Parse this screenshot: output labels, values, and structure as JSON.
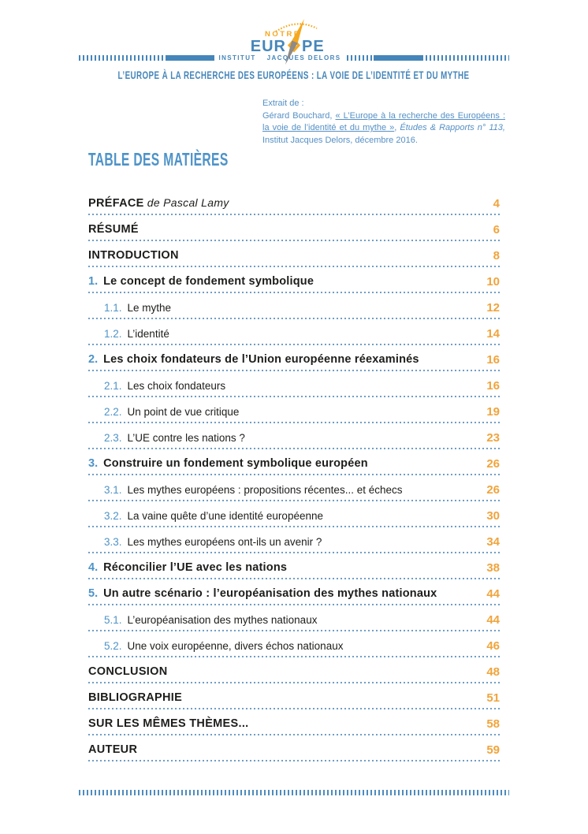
{
  "page": {
    "doc_title": "L’EUROPE À LA RECHERCHE DES EUROPÉENS : LA VOIE DE L’IDENTITÉ ET DU MYTHE"
  },
  "logo": {
    "brand_top": "NOTRE",
    "brand_left": "EUR",
    "brand_right": "PE",
    "institute_left": "INSTITUT",
    "institute_right": "JACQUES DELORS"
  },
  "citation": {
    "intro": "Extrait de :",
    "author": "Gérard Bouchard, ",
    "link_text": "« L’Europe à la recherche des Européens : la voie de l’identité et du mythe »",
    "after_link": ", ",
    "journal_italic": "Études & Rapports n° 113,",
    "tail": " Institut Jacques Delors, décembre 2016."
  },
  "toc": {
    "heading": "TABLE DES MATIÈRES",
    "entries": [
      {
        "label": "PRÉFACE",
        "italic": " de Pascal Lamy",
        "page": "4",
        "style": "top"
      },
      {
        "label": "RÉSUMÉ",
        "page": "6",
        "style": "top"
      },
      {
        "label": "INTRODUCTION",
        "page": "8",
        "style": "top"
      },
      {
        "num": "1.",
        "label": "Le concept de fondement symbolique",
        "page": "10",
        "style": "chapter"
      },
      {
        "num": "1.1.",
        "label": "Le mythe",
        "page": "12",
        "style": "sub"
      },
      {
        "num": "1.2.",
        "label": "L’identité",
        "page": "14",
        "style": "sub"
      },
      {
        "num": "2.",
        "label": "Les choix fondateurs de l’Union européenne réexaminés",
        "page": "16",
        "style": "chapter"
      },
      {
        "num": "2.1.",
        "label": "Les choix fondateurs",
        "page": "16",
        "style": "sub"
      },
      {
        "num": "2.2.",
        "label": "Un point de vue critique",
        "page": "19",
        "style": "sub"
      },
      {
        "num": "2.3.",
        "label": "L’UE contre les nations ?",
        "page": "23",
        "style": "sub"
      },
      {
        "num": "3.",
        "label": "Construire un fondement symbolique européen",
        "page": "26",
        "style": "chapter"
      },
      {
        "num": "3.1.",
        "label": "Les mythes européens : propositions récentes... et échecs",
        "page": "26",
        "style": "sub"
      },
      {
        "num": "3.2.",
        "label": "La vaine quête d’une identité européenne",
        "page": "30",
        "style": "sub"
      },
      {
        "num": "3.3.",
        "label": "Les mythes européens ont-ils un avenir ?",
        "page": "34",
        "style": "sub"
      },
      {
        "num": "4.",
        "label": "Réconcilier l’UE avec les nations",
        "page": "38",
        "style": "chapter"
      },
      {
        "num": "5.",
        "label": "Un autre scénario : l’européanisation des mythes nationaux",
        "page": "44",
        "style": "chapter"
      },
      {
        "num": "5.1.",
        "label": "L’européanisation des mythes nationaux",
        "page": "44",
        "style": "sub"
      },
      {
        "num": "5.2.",
        "label": "Une voix européenne, divers échos nationaux",
        "page": "46",
        "style": "sub"
      },
      {
        "label": "CONCLUSION",
        "page": "48",
        "style": "top"
      },
      {
        "label": "BIBLIOGRAPHIE",
        "page": "51",
        "style": "top"
      },
      {
        "label": "SUR LES MÊMES THÈMES...",
        "page": "58",
        "style": "top"
      },
      {
        "label": "AUTEUR",
        "page": "59",
        "style": "top"
      }
    ]
  },
  "colors": {
    "blue": "#4586ba",
    "blue_light": "#4e93c8",
    "orange": "#f0a43c",
    "logo_orange": "#f5a81e",
    "needle_gray": "#8e8b88",
    "text_dark": "#1d1d1b",
    "leader_dots": "#6f9ec6"
  }
}
